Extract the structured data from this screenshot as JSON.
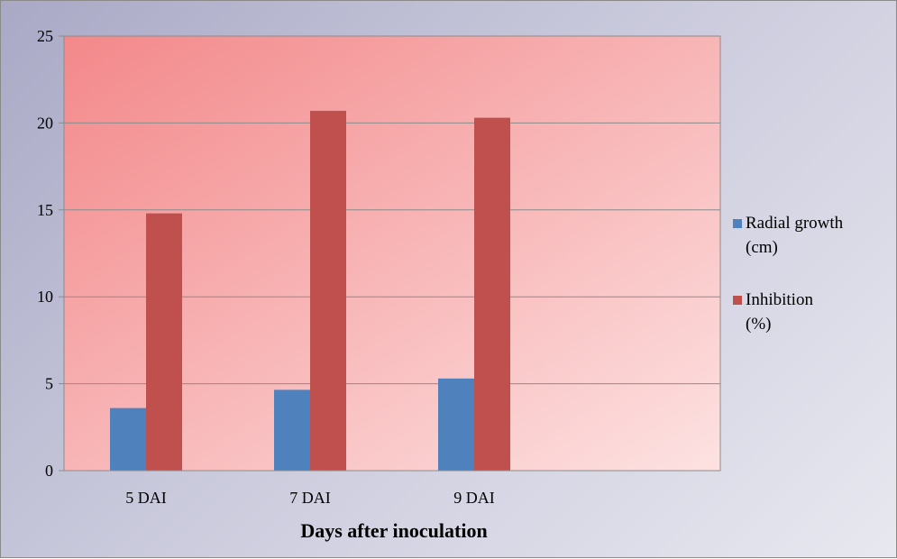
{
  "chart_data": {
    "type": "bar",
    "categories": [
      "5 DAI",
      "7 DAI",
      "9 DAI",
      ""
    ],
    "series": [
      {
        "name": "Radial growth (cm)",
        "color": "#4f81bd",
        "values": [
          3.6,
          4.65,
          5.3,
          null
        ]
      },
      {
        "name": "Inhibition (%)",
        "color": "#c0504d",
        "values": [
          14.8,
          20.7,
          20.3,
          null
        ]
      }
    ],
    "title": "",
    "xlabel": "Days after inoculation",
    "ylabel": "",
    "ylim": [
      0,
      25
    ],
    "yticks": [
      0,
      5,
      10,
      15,
      20,
      25
    ],
    "grid": true,
    "legend_placement": "right",
    "plot_background": [
      "#f3888a",
      "#fde2e2"
    ]
  }
}
